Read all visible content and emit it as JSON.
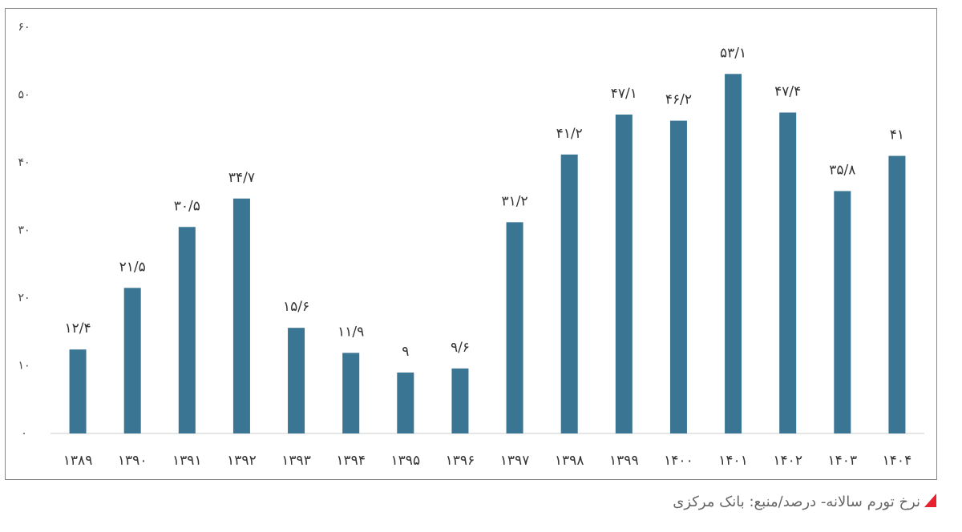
{
  "chart_data": {
    "type": "bar",
    "categories": [
      "۱۳۸۹",
      "۱۳۹۰",
      "۱۳۹۱",
      "۱۳۹۲",
      "۱۳۹۳",
      "۱۳۹۴",
      "۱۳۹۵",
      "۱۳۹۶",
      "۱۳۹۷",
      "۱۳۹۸",
      "۱۳۹۹",
      "۱۴۰۰",
      "۱۴۰۱",
      "۱۴۰۲",
      "۱۴۰۳",
      "۱۴۰۴"
    ],
    "values": [
      12.4,
      21.5,
      30.5,
      34.7,
      15.6,
      11.9,
      9,
      9.6,
      31.2,
      41.2,
      47.1,
      46.2,
      53.1,
      47.4,
      35.8,
      41
    ],
    "value_labels": [
      "۱۲/۴",
      "۲۱/۵",
      "۳۰/۵",
      "۳۴/۷",
      "۱۵/۶",
      "۱۱/۹",
      "۹",
      "۹/۶",
      "۳۱/۲",
      "۴۱/۲",
      "۴۷/۱",
      "۴۶/۲",
      "۵۳/۱",
      "۴۷/۴",
      "۳۵/۸",
      "۴۱"
    ],
    "color": "#3a7594",
    "ylim": [
      0,
      60
    ],
    "yticks": [
      {
        "value": 0,
        "label": "۰"
      },
      {
        "value": 10,
        "label": "۱۰"
      },
      {
        "value": 20,
        "label": "۲۰"
      },
      {
        "value": 30,
        "label": "۳۰"
      },
      {
        "value": 40,
        "label": "۴۰"
      },
      {
        "value": 50,
        "label": "۵۰"
      },
      {
        "value": 60,
        "label": "۶۰"
      }
    ],
    "grid": false,
    "caption": "نرخ تورم سالانه- درصد/منبع: بانک مرکزی"
  }
}
